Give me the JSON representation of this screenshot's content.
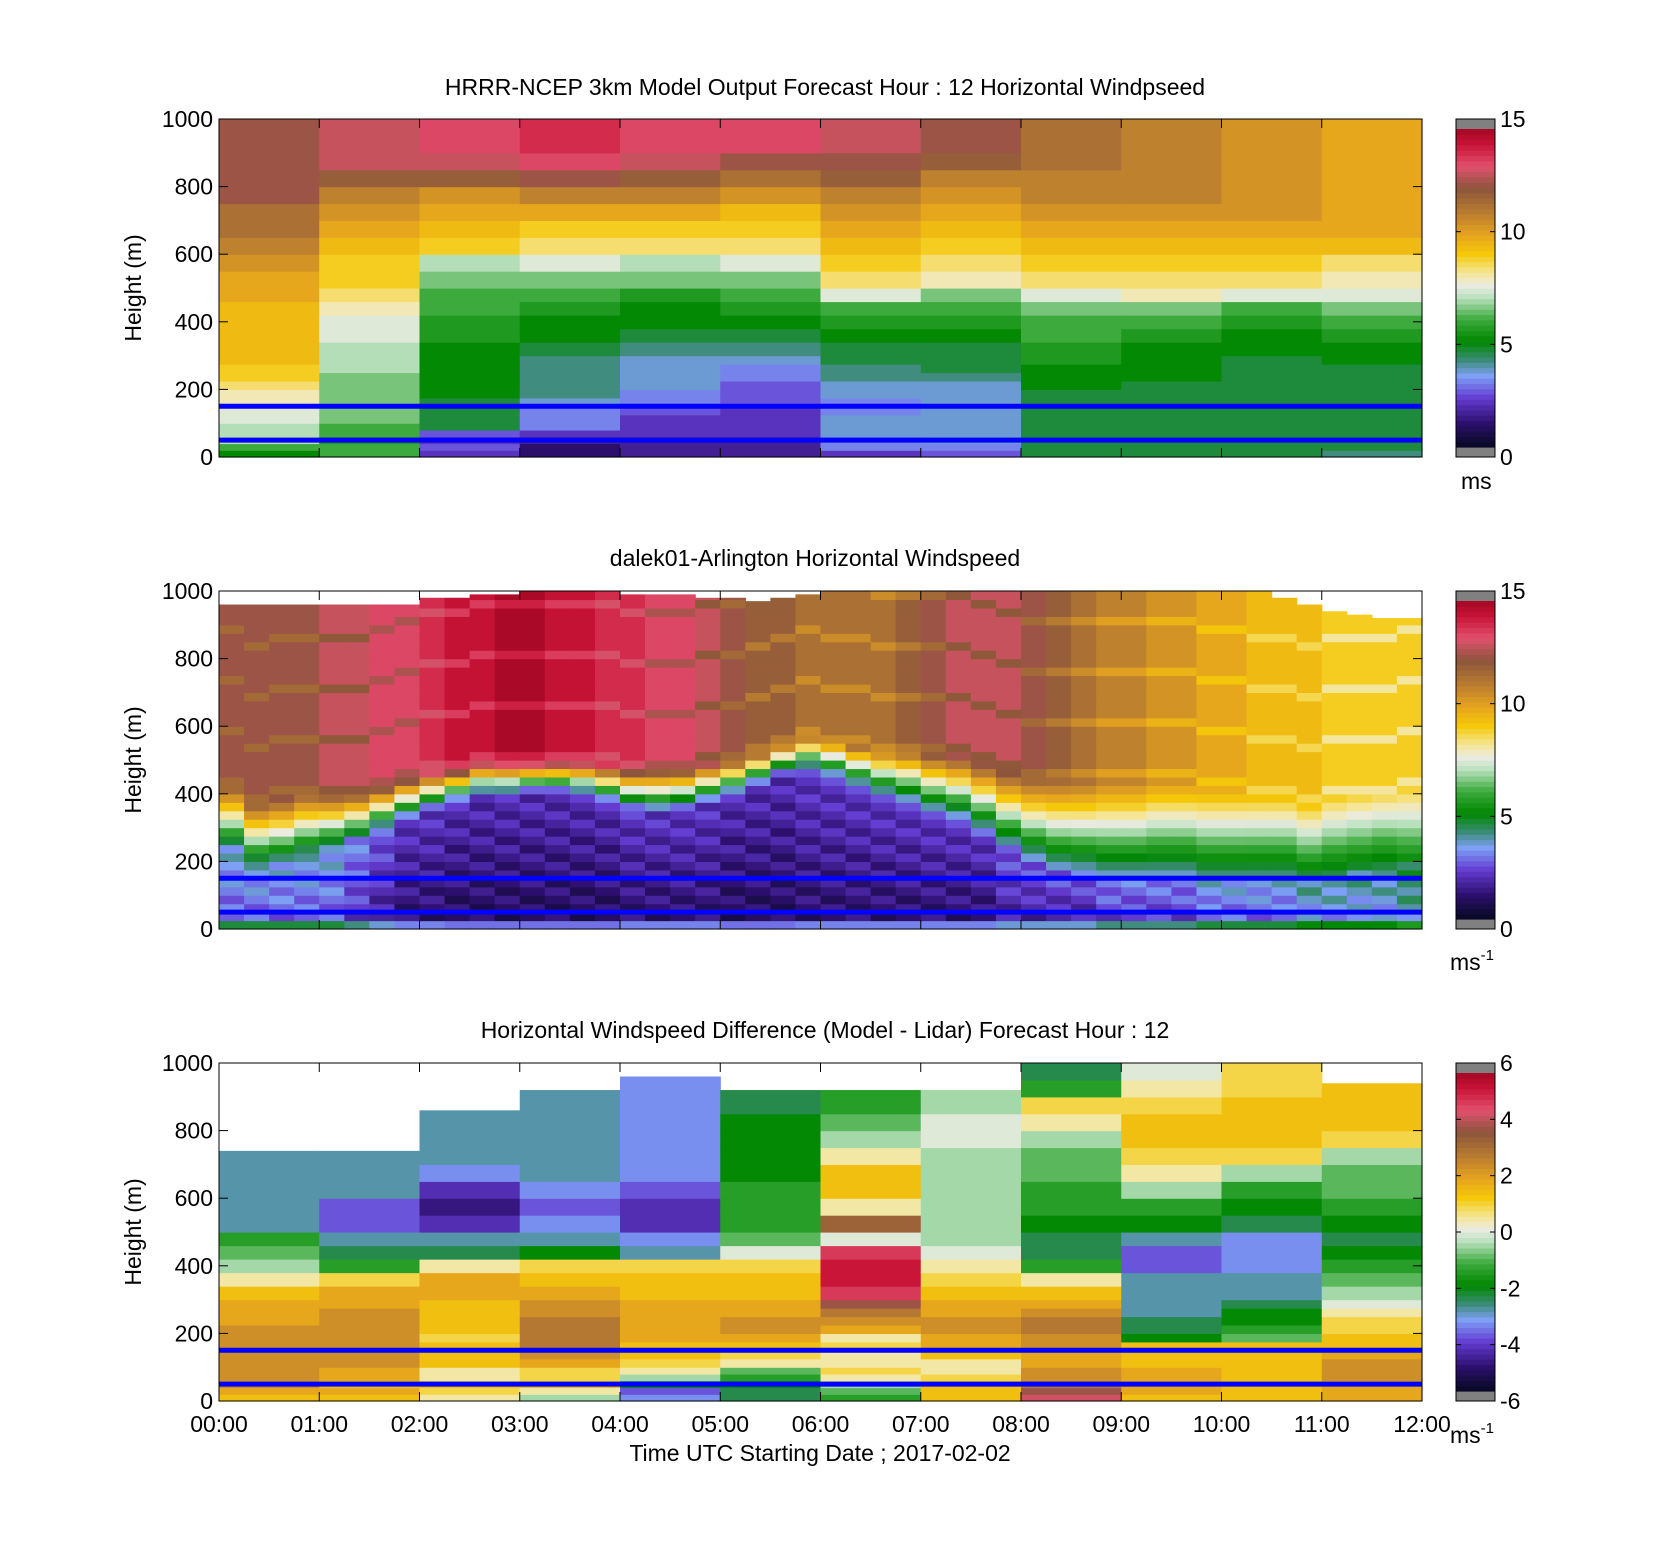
{
  "figure": {
    "xlabel": "Time UTC  Starting Date ; 2017-02-02",
    "overlay_line_color": "#0000ff",
    "overlay_heights_m": [
      150,
      50
    ]
  },
  "chart_data": [
    {
      "type": "heatmap",
      "title": "HRRR-NCEP 3km Model Output   Forecast Hour : 12 Horizontal Windpseed",
      "ylabel": "Height (m)",
      "xlim": [
        0,
        12
      ],
      "ylim": [
        0,
        1000
      ],
      "yticks": [
        "0",
        "200",
        "400",
        "600",
        "800",
        "1000"
      ],
      "xticks": [],
      "colorbar": {
        "ticks": [
          "0",
          "5",
          "10",
          "15"
        ],
        "range": [
          0,
          15
        ],
        "unit": "ms",
        "unit_sup": ""
      },
      "layer_heights_m": [
        20,
        40,
        60,
        80,
        100,
        125,
        150,
        175,
        200,
        225,
        250,
        275,
        300,
        340,
        380,
        420,
        460,
        500,
        550,
        600,
        650,
        700,
        750,
        800,
        850,
        900,
        950,
        1000
      ],
      "hours": [
        "00:00",
        "01:00",
        "02:00",
        "03:00",
        "04:00",
        "05:00",
        "06:00",
        "07:00",
        "08:00",
        "09:00",
        "10:00",
        "11:00"
      ],
      "values_ms": [
        [
          5,
          6,
          7,
          7,
          7,
          7.5,
          7.5,
          8,
          8,
          8.5,
          9,
          9,
          9.5,
          9.5,
          9.5,
          9.5,
          9.5,
          10,
          10,
          10.5,
          11,
          11.5,
          11.5,
          12.5,
          12.5,
          12.5,
          12.5,
          12.5
        ],
        [
          6,
          6,
          5.5,
          6,
          6,
          6.5,
          6.5,
          6.5,
          6.5,
          6.5,
          6.5,
          7,
          7,
          7,
          7.5,
          7.5,
          8,
          8.5,
          9,
          9,
          9.5,
          10,
          10.5,
          11,
          12,
          13,
          13,
          13
        ],
        [
          2,
          2.5,
          2,
          2.5,
          4.5,
          4.5,
          4.5,
          4.5,
          5,
          5,
          5,
          5,
          5,
          5,
          5.5,
          5.5,
          6,
          6,
          6.5,
          7,
          9,
          9.5,
          10,
          10.5,
          12,
          13,
          13.5,
          13.5
        ],
        [
          1,
          1,
          1.5,
          2,
          3,
          3,
          3,
          3.5,
          4,
          4,
          4,
          4,
          4,
          4.5,
          5,
          5,
          5.5,
          6,
          6.5,
          7.5,
          8.5,
          9,
          10,
          11,
          12.5,
          13.5,
          14,
          14
        ],
        [
          1.5,
          1.5,
          1.5,
          2,
          2,
          2,
          2.5,
          3,
          3,
          3.5,
          3.5,
          3.5,
          3.5,
          4,
          4.5,
          5,
          5,
          5.5,
          6.5,
          7,
          8.5,
          9,
          10,
          11,
          12,
          13,
          13.5,
          13.5
        ],
        [
          1.5,
          1.5,
          1.5,
          2,
          2,
          2,
          2,
          2.5,
          2.5,
          2.5,
          3,
          3,
          3.5,
          4,
          4.5,
          5,
          5.5,
          6,
          6.5,
          7.5,
          8.5,
          9,
          9.5,
          10.5,
          11.5,
          12.5,
          13.5,
          13.5
        ],
        [
          2,
          3,
          3,
          3.5,
          3.5,
          3.5,
          3,
          3,
          3.5,
          3.5,
          4,
          4,
          4.5,
          4.5,
          5,
          5.5,
          6,
          7.5,
          8.5,
          9,
          9.5,
          10,
          10.5,
          11,
          12,
          12.5,
          13,
          13
        ],
        [
          2.5,
          3,
          3.5,
          3.5,
          3.5,
          3.5,
          3.5,
          3.5,
          3.5,
          3.5,
          4,
          4.5,
          4.5,
          4.5,
          5,
          5.5,
          6,
          6.5,
          8,
          8.5,
          9,
          9.5,
          10,
          10.5,
          11,
          12,
          12.5,
          12.5
        ],
        [
          4.5,
          4.5,
          4.5,
          4.5,
          4.5,
          4.5,
          4.5,
          4.5,
          4.5,
          5,
          5,
          5,
          5.5,
          5.5,
          6,
          6,
          6.5,
          7.5,
          8.5,
          9,
          9.5,
          10,
          10.5,
          11,
          11,
          11.5,
          11.5,
          11.5
        ],
        [
          4.5,
          4.5,
          4.5,
          4.5,
          4.5,
          4.5,
          4.5,
          4.5,
          4.5,
          4.5,
          5,
          5,
          5,
          5,
          5.5,
          6,
          6.5,
          8,
          8.5,
          9,
          9.5,
          10,
          10.5,
          11,
          11,
          11,
          11,
          11
        ],
        [
          4.5,
          4.5,
          4.5,
          4.5,
          4.5,
          4.5,
          4.5,
          4.5,
          4.5,
          4.5,
          4.5,
          4.5,
          4.5,
          5,
          5,
          5.5,
          6,
          7.5,
          8.5,
          9,
          9.5,
          10,
          10.5,
          10.5,
          10.5,
          10.5,
          10.5,
          10.5
        ],
        [
          4,
          4.5,
          4.5,
          4.5,
          4.5,
          4.5,
          4.5,
          4.5,
          4.5,
          4.5,
          4.5,
          4.5,
          5,
          5,
          5.5,
          6,
          6.5,
          7.5,
          8,
          8.5,
          9.5,
          10,
          10,
          10,
          10,
          10,
          10,
          10
        ]
      ]
    },
    {
      "type": "heatmap",
      "title": "dalek01-Arlington  Horizontal Windspeed",
      "ylabel": "Height (m)",
      "xlim": [
        0,
        12
      ],
      "ylim": [
        0,
        1000
      ],
      "yticks": [
        "0",
        "200",
        "400",
        "600",
        "800",
        "1000"
      ],
      "xticks": [],
      "colorbar": {
        "ticks": [
          "0",
          "5",
          "10",
          "15"
        ],
        "range": [
          0,
          15
        ],
        "unit": "ms",
        "unit_sup": "-1"
      },
      "time_step_h": 0.25,
      "profile": {
        "jet_top_m": [
          960,
          960,
          960,
          960,
          960,
          960,
          960,
          960,
          980,
          980,
          990,
          990,
          1000,
          1000,
          1000,
          1000,
          990,
          990,
          990,
          980,
          980,
          970,
          980,
          990,
          1000,
          1000,
          1000,
          1000,
          1000,
          1000,
          1000,
          1000,
          1000,
          1000,
          1000,
          1000,
          1000,
          1000,
          1000,
          1000,
          1000,
          1000,
          980,
          960,
          940,
          930,
          920,
          920
        ],
        "calm_top_m": [
          250,
          200,
          210,
          230,
          250,
          270,
          300,
          330,
          360,
          380,
          400,
          400,
          410,
          410,
          400,
          380,
          360,
          350,
          360,
          380,
          400,
          430,
          460,
          470,
          450,
          420,
          390,
          370,
          340,
          320,
          280,
          240,
          200,
          170,
          160,
          160,
          160,
          160,
          160,
          160,
          160,
          160,
          160,
          160,
          170,
          180,
          190,
          200
        ],
        "calm_min_ms": [
          2,
          2,
          2,
          2,
          2,
          1.5,
          1,
          0.5,
          0.5,
          0.3,
          0.3,
          0.3,
          0.3,
          0.3,
          0.3,
          0.3,
          0.5,
          0.5,
          0.5,
          0.5,
          0.3,
          0.3,
          0.3,
          0.5,
          0.5,
          0.5,
          0.5,
          0.5,
          0.5,
          0.5,
          0.5,
          1,
          1,
          1,
          1,
          1.5,
          1.5,
          1.5,
          1.5,
          2,
          2,
          2,
          2,
          2.5,
          2.5,
          2.5,
          2.5,
          3
        ],
        "transition_depth_m": [
          180,
          180,
          180,
          180,
          160,
          140,
          130,
          120,
          110,
          100,
          100,
          100,
          90,
          90,
          100,
          110,
          120,
          130,
          120,
          110,
          100,
          90,
          90,
          100,
          110,
          120,
          140,
          160,
          180,
          200,
          220,
          240,
          260,
          280,
          280,
          280,
          280,
          280,
          280,
          260,
          260,
          240,
          240,
          220,
          220,
          220,
          220,
          220
        ],
        "jet_speed_ms": [
          12.5,
          12.5,
          12.5,
          12.5,
          13,
          13,
          13.5,
          13.5,
          14,
          14.5,
          14.5,
          15,
          15,
          14.5,
          14.5,
          14,
          14,
          13.5,
          13.5,
          13,
          12.5,
          12,
          12,
          11.5,
          11.5,
          11.5,
          11.5,
          12,
          12.5,
          13,
          13,
          13,
          12.5,
          12,
          11.5,
          11,
          11,
          10.5,
          10.5,
          10,
          10,
          9.5,
          9.5,
          9.5,
          9,
          9,
          9,
          9
        ]
      }
    },
    {
      "type": "heatmap",
      "title": "Horizontal Windspeed Difference (Model - Lidar) Forecast Hour : 12",
      "ylabel": "Height (m)",
      "xlim": [
        0,
        12
      ],
      "ylim": [
        0,
        1000
      ],
      "yticks": [
        "0",
        "200",
        "400",
        "600",
        "800",
        "1000"
      ],
      "xticks": [
        "00:00",
        "01:00",
        "02:00",
        "03:00",
        "04:00",
        "05:00",
        "06:00",
        "07:00",
        "08:00",
        "09:00",
        "10:00",
        "11:00",
        "12:00"
      ],
      "colorbar": {
        "ticks": [
          "-6",
          "-4",
          "-2",
          "0",
          "2",
          "4",
          "6"
        ],
        "range": [
          -6,
          6
        ],
        "unit": "ms",
        "unit_sup": "-1"
      },
      "layer_heights_m": [
        20,
        40,
        60,
        80,
        100,
        125,
        150,
        175,
        200,
        225,
        250,
        275,
        300,
        340,
        380,
        420,
        460,
        500,
        550,
        600,
        650,
        700,
        750,
        800,
        850,
        900,
        950,
        1000
      ],
      "hours": [
        "00:00",
        "01:00",
        "02:00",
        "03:00",
        "04:00",
        "05:00",
        "06:00",
        "07:00",
        "08:00",
        "09:00",
        "10:00",
        "11:00"
      ],
      "valid_top_m": [
        740,
        740,
        860,
        920,
        960,
        920,
        920,
        920,
        1000,
        1000,
        1000,
        940
      ],
      "values_ms": [
        [
          1.5,
          2,
          2.5,
          2.5,
          2.5,
          2.5,
          2.5,
          2.5,
          2.5,
          2.5,
          2,
          2,
          2,
          1.5,
          0.5,
          -0.5,
          -1,
          -1.5,
          -3,
          -3,
          -3,
          -3,
          -3,
          -3,
          -3,
          -3,
          -3,
          -3
        ],
        [
          1.5,
          2,
          1.5,
          2,
          2,
          2.5,
          2.5,
          2.5,
          2.5,
          2.5,
          2.5,
          2.5,
          2,
          2,
          1,
          -1.5,
          -2.5,
          -3,
          -4,
          -4,
          -3,
          -3,
          -3,
          -3,
          -3,
          -3,
          -3,
          -3
        ],
        [
          0.5,
          1,
          1.5,
          0.5,
          0.5,
          1.5,
          1.5,
          1.5,
          1,
          1.5,
          1.5,
          1.5,
          1.5,
          2,
          2,
          0.5,
          -2.5,
          -3,
          -4.5,
          -5,
          -4.5,
          -3.5,
          -3,
          -3,
          -3,
          -3,
          -3,
          -3
        ],
        [
          -0.5,
          0.5,
          1.5,
          1,
          1,
          2,
          2.5,
          3,
          3,
          3,
          3,
          2.5,
          2.5,
          2,
          1.5,
          1,
          -2,
          -3,
          -3.5,
          -4,
          -3.5,
          -3,
          -3,
          -3,
          -3,
          -3,
          -3,
          -3
        ],
        [
          -3.5,
          -4,
          -2,
          -0.5,
          0.5,
          1,
          1.5,
          1.5,
          2,
          2,
          2,
          2,
          2,
          1.5,
          1.5,
          1,
          -3,
          -3.5,
          -4.5,
          -4.5,
          -4,
          -3.5,
          -3.5,
          -3.5,
          -3.5,
          -3.5,
          -3.5,
          -3.5
        ],
        [
          -2.5,
          -2.5,
          -2,
          -1.5,
          -1,
          0.5,
          1,
          1.5,
          2,
          2.5,
          2.5,
          2,
          2,
          1.5,
          1.5,
          1,
          0,
          -1,
          -1.5,
          -1.5,
          -1.5,
          -2,
          -2,
          -2,
          -2,
          -2.5,
          -2.5,
          -2.5
        ],
        [
          -1.5,
          -1,
          -0.5,
          0.5,
          1,
          0.5,
          0.5,
          1,
          0.5,
          2,
          2.5,
          3,
          4,
          5,
          5.5,
          5.5,
          5,
          0,
          3.5,
          0.5,
          1.5,
          1.5,
          0.5,
          -0.5,
          -1,
          -1.5,
          -1.5,
          -1.5
        ],
        [
          1.5,
          1.5,
          1.5,
          1,
          0.5,
          0.5,
          1.5,
          2,
          2,
          2.5,
          2.5,
          2,
          2,
          1.5,
          1,
          0.5,
          0,
          -0.5,
          -0.5,
          -0.5,
          -0.5,
          -0.5,
          -0.5,
          0,
          0,
          -0.5,
          -0.5,
          -0.5
        ],
        [
          4.5,
          4,
          3,
          2.5,
          2.5,
          2,
          2,
          2.5,
          2.5,
          3,
          3,
          2.5,
          2,
          1.5,
          0.5,
          -1.5,
          -2.5,
          -2.5,
          -2,
          -1.5,
          -1.5,
          -1,
          -1,
          -0.5,
          0.5,
          1,
          -1.5,
          -2.5
        ],
        [
          1.5,
          2,
          2,
          2,
          2,
          1.5,
          1.5,
          1.5,
          -2,
          -2.5,
          -2.5,
          -3,
          -3,
          -3,
          -3,
          -4,
          -4,
          -3,
          -2,
          -1.5,
          -0.5,
          0.5,
          1,
          1.5,
          1.5,
          1,
          0.5,
          0
        ],
        [
          1.5,
          1.5,
          1.5,
          1.5,
          1.5,
          1.5,
          1.5,
          1.5,
          -1,
          -1.5,
          -2,
          -2,
          -2.5,
          -3,
          -3,
          -3.5,
          -3.5,
          -3.5,
          -2.5,
          -2,
          -1.5,
          -0.5,
          1,
          1.5,
          1.5,
          1.5,
          1,
          1
        ],
        [
          2,
          2,
          2,
          2.5,
          2.5,
          2.5,
          2,
          1.5,
          1.5,
          1,
          1,
          0.5,
          0,
          -0.5,
          -1,
          -1.5,
          -2,
          -2.5,
          -2,
          -1.5,
          -1,
          -1,
          -0.5,
          1,
          1.5,
          1.5,
          1.5,
          1.5
        ]
      ]
    }
  ]
}
